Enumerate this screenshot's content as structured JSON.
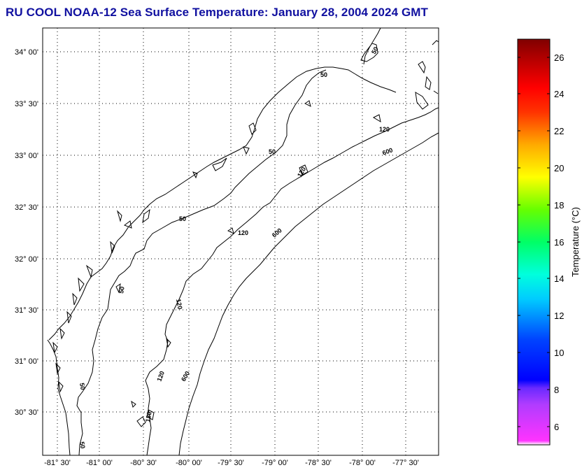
{
  "title": "RU COOL  NOAA-12  Sea Surface Temperature:  January 28, 2004 2024 GMT",
  "map": {
    "lat_labels": [
      "34° 00'",
      "33° 30'",
      "33° 00'",
      "32° 30'",
      "32° 00'",
      "31° 30'",
      "31° 00'",
      "30° 30'"
    ],
    "lon_labels": [
      "-81° 30'",
      "-81° 00'",
      "-80° 30'",
      "-80° 00'",
      "-79° 30'",
      "-79° 00'",
      "-78° 30'",
      "-78° 00'",
      "-77° 30'"
    ],
    "contour_labels": [
      "50",
      "50",
      "50",
      "50",
      "50",
      "50",
      "50",
      "120",
      "120",
      "120",
      "120",
      "120",
      "120",
      "600",
      "600",
      "600",
      "600"
    ]
  },
  "colorbar": {
    "label": "Temperature (°C)",
    "ticks": [
      "26",
      "24",
      "22",
      "20",
      "18",
      "16",
      "14",
      "12",
      "10",
      "8",
      "6"
    ],
    "range": [
      5,
      27
    ],
    "colors": [
      "#ff33ff",
      "#9933ff",
      "#0000ff",
      "#00ffff",
      "#00ff66",
      "#ffff00",
      "#ff8800",
      "#ff0000",
      "#800000"
    ]
  }
}
